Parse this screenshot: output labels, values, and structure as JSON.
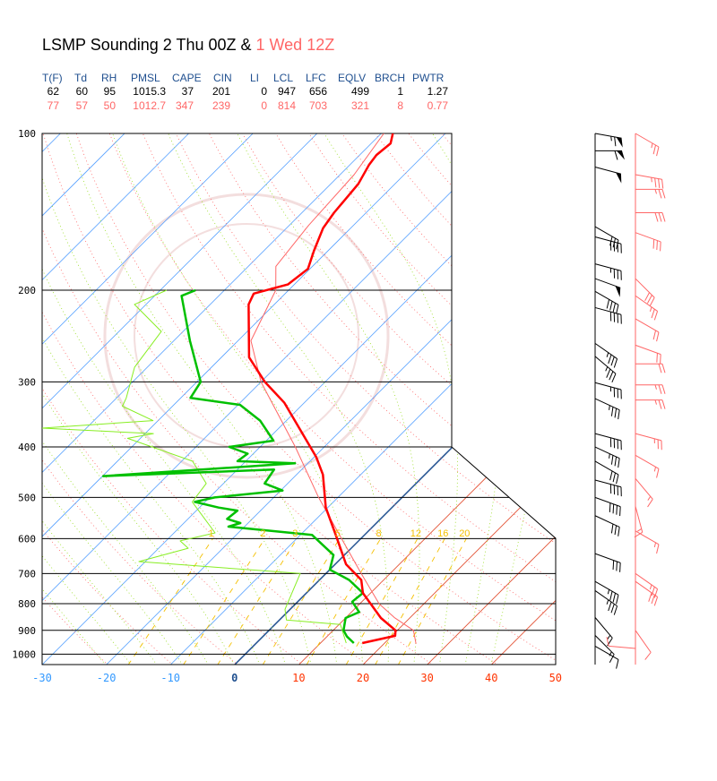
{
  "title": {
    "main": "LSMP Sounding 2 Thu 00Z & ",
    "secondary": "1 Wed 12Z"
  },
  "stats": {
    "headers": [
      "T(F)",
      "Td",
      "RH",
      "PMSL",
      "CAPE",
      "CIN",
      "LI",
      "LCL",
      "LFC",
      "EQLV",
      "BRCH",
      "PWTR"
    ],
    "row_thu": [
      "62",
      "60",
      "95",
      "1015.3",
      "37",
      "201",
      "0",
      "947",
      "656",
      "499",
      "1",
      "1.27"
    ],
    "row_wed": [
      "77",
      "57",
      "50",
      "1012.7",
      "347",
      "239",
      "0",
      "814",
      "703",
      "321",
      "8",
      "0.77"
    ]
  },
  "colors": {
    "thu_temp": "#ff0000",
    "thu_dew": "#00c000",
    "wed_temp": "#ff6666",
    "wed_dew": "#88ee22",
    "header": "#1f4f8f",
    "isotherm_cold": "#55a0ff",
    "isotherm_zero": "#1f4f8f",
    "isotherm_warm": "#e04020",
    "mixing": "#f5c000"
  },
  "chart_data": {
    "type": "skew-t",
    "title": "LSMP Sounding 2 Thu 00Z & 1 Wed 12Z",
    "pressure_ticks": [
      "100",
      "200",
      "300",
      "400",
      "500",
      "600",
      "700",
      "800",
      "900",
      "1000"
    ],
    "temp_ticks": [
      "-30",
      "-20",
      "-10",
      "0",
      "10",
      "20",
      "30",
      "40",
      "50"
    ],
    "mixing_ratio_labels": [
      "1",
      "2",
      "3",
      "5",
      "8",
      "12",
      "16",
      "20"
    ],
    "xlim_c": [
      -30,
      50
    ],
    "ylim_hpa": [
      1050,
      100
    ],
    "series": [
      {
        "name": "Thu 00Z temperature",
        "key": "thu_temp",
        "p": [
          952,
          922,
          900,
          852,
          763,
          720,
          672,
          590,
          523,
          452,
          418,
          329,
          300,
          269,
          213,
          203,
          195,
          182,
          168,
          152,
          142,
          125,
          115,
          110,
          104.5,
          100
        ],
        "t": [
          16.5,
          20.5,
          19.7,
          15.5,
          8.8,
          6.5,
          1.7,
          -4.5,
          -10.3,
          -15.9,
          -19.7,
          -33.1,
          -39.4,
          -45.7,
          -54,
          -54.9,
          -51,
          -50.3,
          -52.2,
          -54.3,
          -55,
          -55.7,
          -57,
          -57.4,
          -57,
          -58.2
        ]
      },
      {
        "name": "Thu 00Z dewpoint",
        "key": "thu_dew",
        "p": [
          952,
          925,
          900,
          852,
          830,
          793,
          763,
          720,
          688,
          645,
          590,
          569,
          560,
          550,
          530,
          523,
          510,
          500,
          485,
          470,
          442,
          455,
          430,
          426,
          412,
          400,
          389,
          356,
          332,
          322,
          300,
          250,
          205,
          200
        ],
        "t": [
          15.2,
          13.1,
          11.6,
          10,
          11.2,
          8.5,
          8.8,
          4.6,
          0,
          -1.7,
          -8.2,
          -22.5,
          -21.2,
          -23.9,
          -23.6,
          -27,
          -31.6,
          -29.2,
          -19.7,
          -23.6,
          -24.3,
          -49.9,
          -22,
          -31.3,
          -30.9,
          -34.8,
          -28.9,
          -34.1,
          -39.7,
          -48.5,
          -49.4,
          -57.5,
          -65.8,
          -64.5
        ]
      },
      {
        "name": "Wed 12Z temperature",
        "key": "wed_temp",
        "p": [
          955,
          900,
          850,
          800,
          700,
          600,
          500,
          400,
          300,
          250,
          200,
          180,
          150,
          120,
          100
        ],
        "t": [
          25,
          22.5,
          17.5,
          13,
          5.5,
          -3,
          -13,
          -24.5,
          -40,
          -48,
          -52,
          -55.7,
          -57,
          -57.8,
          -59.6
        ]
      },
      {
        "name": "Wed 12Z dewpoint",
        "key": "wed_dew",
        "p": [
          952,
          877,
          860,
          820,
          700,
          664,
          626,
          606,
          585,
          510,
          470,
          426,
          385,
          377,
          368,
          356,
          334,
          322,
          281,
          240,
          213,
          200
        ],
        "t": [
          14,
          10.2,
          1.1,
          -0.8,
          -4,
          -31,
          -25.4,
          -27.8,
          -23.6,
          -32,
          -32.7,
          -38.3,
          -52,
          -48.7,
          -67,
          -50.8,
          -57.8,
          -58.5,
          -62,
          -63.4,
          -71.8,
          -69
        ]
      }
    ],
    "winds_thu": {
      "p": [
        100,
        108,
        116,
        151,
        158,
        178,
        190,
        201,
        216,
        253,
        268,
        301,
        323,
        377,
        400,
        426,
        463,
        500,
        542,
        641,
        725,
        755,
        850,
        920,
        965
      ],
      "dir": [
        280,
        270,
        285,
        300,
        285,
        285,
        290,
        300,
        285,
        305,
        310,
        285,
        295,
        285,
        295,
        300,
        285,
        290,
        295,
        290,
        300,
        305,
        320,
        315,
        300
      ],
      "kt": [
        65,
        60,
        50,
        30,
        40,
        35,
        50,
        40,
        40,
        35,
        35,
        35,
        35,
        40,
        35,
        30,
        40,
        40,
        30,
        30,
        35,
        35,
        15,
        15,
        10
      ]
    },
    "winds_wed": {
      "p": [
        100,
        120,
        128,
        142,
        155,
        190,
        205,
        227,
        255,
        277,
        304,
        325,
        377,
        415,
        460,
        520,
        580,
        700,
        725,
        900,
        975
      ],
      "dir": [
        300,
        280,
        270,
        270,
        290,
        315,
        305,
        300,
        290,
        270,
        270,
        270,
        285,
        300,
        320,
        345,
        300,
        305,
        305,
        325,
        95
      ],
      "kt": [
        25,
        35,
        25,
        30,
        30,
        30,
        25,
        20,
        20,
        20,
        25,
        25,
        25,
        15,
        15,
        15,
        15,
        25,
        30,
        10,
        10
      ]
    }
  }
}
